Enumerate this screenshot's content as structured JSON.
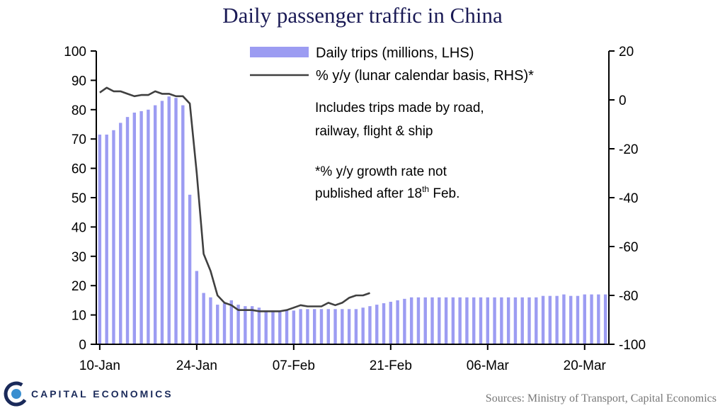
{
  "title": "Daily passenger traffic in China",
  "source": "Sources: Ministry of Transport, Capital Economics",
  "logo_text": "CAPITAL ECONOMICS",
  "notes": {
    "line1": "Includes trips made by road,",
    "line2": "railway, flight & ship",
    "line3": "*% y/y growth rate not",
    "line4a": "published after 18",
    "line4sup": "th",
    "line4b": " Feb."
  },
  "colors": {
    "bar": "#9c9cf2",
    "line": "#404040",
    "title": "#1a1a55",
    "logo": "#1a2a5a"
  },
  "chart_data": {
    "type": "bar",
    "title": "Daily passenger traffic in China",
    "x_tick_labels": [
      "10-Jan",
      "24-Jan",
      "07-Feb",
      "21-Feb",
      "06-Mar",
      "20-Mar"
    ],
    "y_left": {
      "min": 0,
      "max": 100,
      "ticks": [
        "0",
        "10",
        "20",
        "30",
        "40",
        "50",
        "60",
        "70",
        "80",
        "90",
        "100"
      ]
    },
    "y_right": {
      "min": -100,
      "max": 20,
      "ticks": [
        "-100",
        "-80",
        "-60",
        "-40",
        "-20",
        "0",
        "20"
      ]
    },
    "series": [
      {
        "name": "Daily trips (millions, LHS)",
        "type": "bar",
        "axis": "left",
        "values": [
          71.5,
          71.5,
          73,
          75.5,
          77.5,
          79,
          79.5,
          80,
          81.5,
          83,
          84.5,
          84,
          81.5,
          51,
          25,
          17.5,
          16,
          13.5,
          14,
          15,
          13.5,
          13,
          13,
          12.5,
          11.5,
          11.5,
          11.5,
          11.5,
          11.5,
          12,
          12,
          12,
          12,
          12,
          12,
          12,
          12,
          12,
          12.5,
          13,
          13.5,
          14,
          14.5,
          15,
          15.5,
          16,
          16,
          16,
          16,
          16,
          16,
          16,
          16,
          16,
          16,
          16,
          16,
          16,
          16,
          16,
          16,
          16,
          16,
          16,
          16.5,
          16.5,
          16.5,
          17,
          16.5,
          16.5,
          17,
          17,
          17,
          17
        ]
      },
      {
        "name": "% y/y (lunar calendar basis, RHS)*",
        "type": "line",
        "axis": "right",
        "values": [
          3,
          5,
          3.5,
          3.5,
          2.5,
          1.5,
          2,
          2,
          3.5,
          2.5,
          2.5,
          1.5,
          1.5,
          -1.5,
          -30,
          -63,
          -70,
          -80,
          -83,
          -84,
          -86,
          -86,
          -86,
          -86.5,
          -86.5,
          -86.5,
          -86.5,
          -86,
          -85,
          -84,
          -84.5,
          -84.5,
          -84.5,
          -83,
          -84,
          -83,
          -81,
          -80,
          -80,
          -79
        ]
      }
    ]
  }
}
